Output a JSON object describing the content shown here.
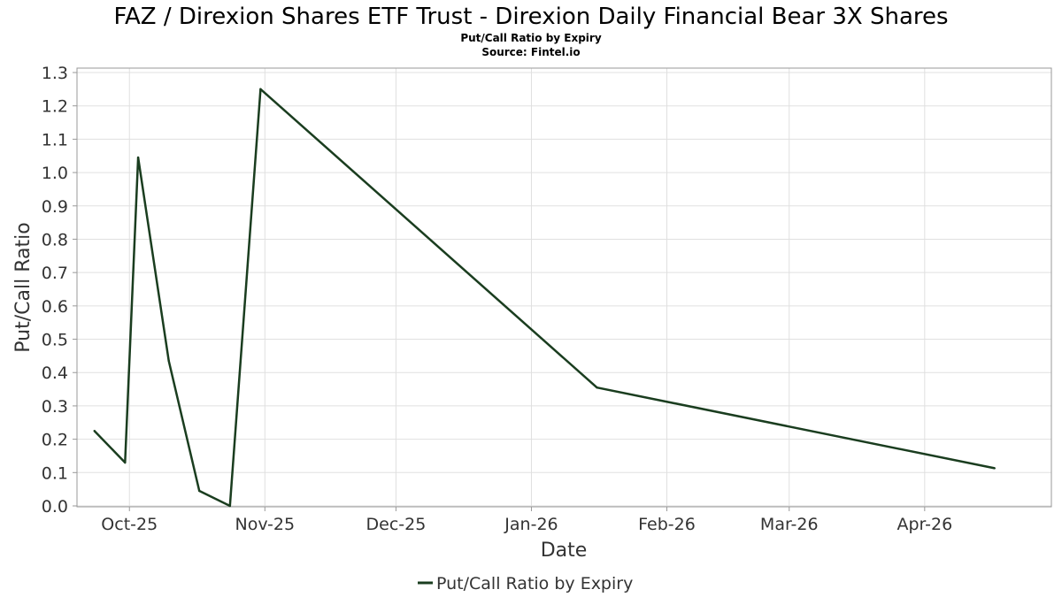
{
  "chart_data": {
    "type": "line",
    "title": "FAZ / Direxion Shares ETF Trust - Direxion Daily Financial Bear 3X Shares",
    "subtitle": "Put/Call Ratio by Expiry",
    "source": "Source: Fintel.io",
    "xlabel": "Date",
    "ylabel": "Put/Call Ratio",
    "xlim": [
      "2025-09-19",
      "2026-04-30"
    ],
    "ylim": [
      0,
      1.3
    ],
    "grid": true,
    "legend_position": "bottom-center",
    "x_ticks": [
      {
        "date": "2025-10-01",
        "label": "Oct-25"
      },
      {
        "date": "2025-11-01",
        "label": "Nov-25"
      },
      {
        "date": "2025-12-01",
        "label": "Dec-25"
      },
      {
        "date": "2026-01-01",
        "label": "Jan-26"
      },
      {
        "date": "2026-02-01",
        "label": "Feb-26"
      },
      {
        "date": "2026-03-01",
        "label": "Mar-26"
      },
      {
        "date": "2026-04-01",
        "label": "Apr-26"
      }
    ],
    "y_ticks": [
      "0.0",
      "0.1",
      "0.2",
      "0.3",
      "0.4",
      "0.5",
      "0.6",
      "0.7",
      "0.8",
      "0.9",
      "1.0",
      "1.1",
      "1.2",
      "1.3"
    ],
    "series": [
      {
        "name": "Put/Call Ratio by Expiry",
        "color": "#1a3d1f",
        "points": [
          {
            "x": "2025-09-23",
            "y": 0.225
          },
          {
            "x": "2025-09-30",
            "y": 0.13
          },
          {
            "x": "2025-10-03",
            "y": 1.045
          },
          {
            "x": "2025-10-10",
            "y": 0.435
          },
          {
            "x": "2025-10-17",
            "y": 0.045
          },
          {
            "x": "2025-10-24",
            "y": 0.0
          },
          {
            "x": "2025-10-31",
            "y": 1.25
          },
          {
            "x": "2026-01-16",
            "y": 0.355
          },
          {
            "x": "2026-04-17",
            "y": 0.113
          }
        ]
      }
    ]
  }
}
